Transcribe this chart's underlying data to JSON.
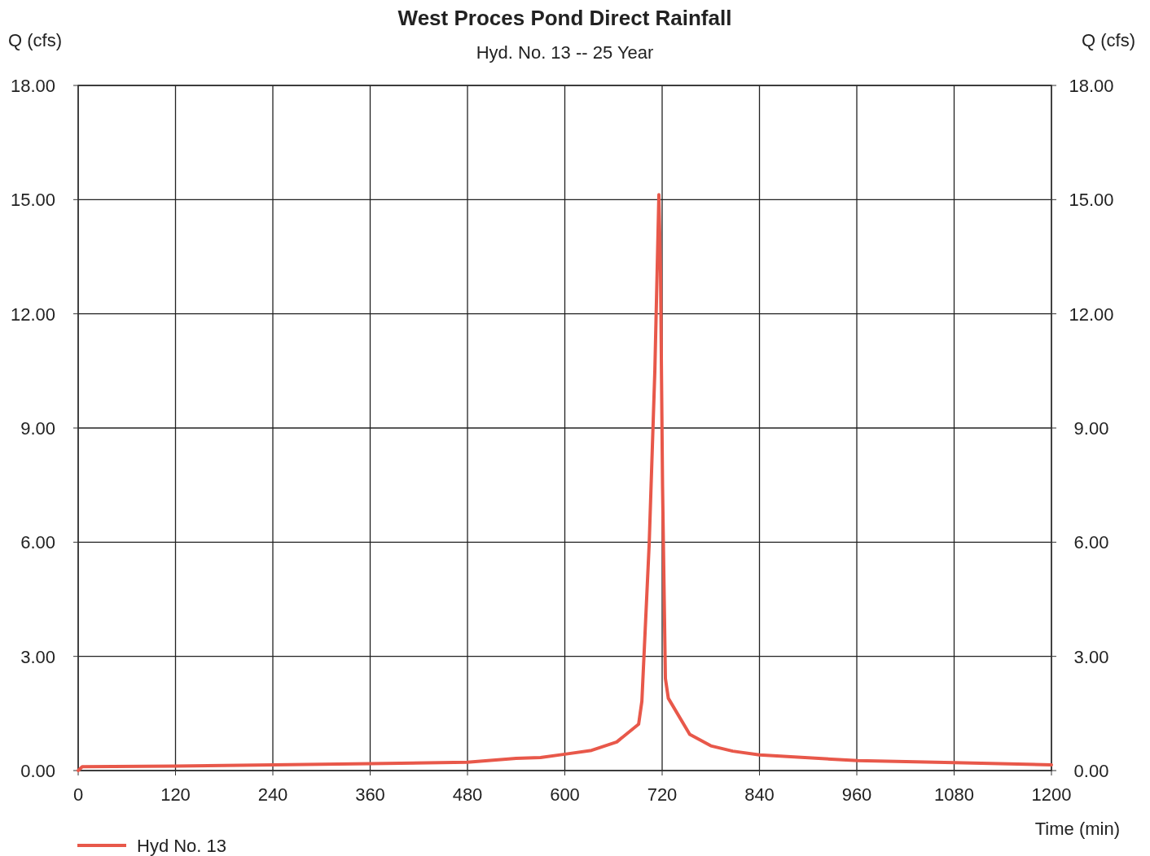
{
  "chart_data": {
    "type": "line",
    "title": "West Proces Pond Direct Rainfall",
    "subtitle": "Hyd. No. 13 -- 25 Year",
    "xlabel": "Time (min)",
    "ylabel": "Q (cfs)",
    "y2label": "Q (cfs)",
    "xlim": [
      0,
      1200
    ],
    "xticks": [
      0,
      120,
      240,
      360,
      480,
      600,
      720,
      840,
      960,
      1080,
      1200
    ],
    "ylim": [
      0,
      18
    ],
    "yticks": [
      {
        "value": 0,
        "label": "0.00"
      },
      {
        "value": 3,
        "label": "3.00"
      },
      {
        "value": 6,
        "label": "6.00"
      },
      {
        "value": 9,
        "label": "9.00"
      },
      {
        "value": 12,
        "label": "12.00"
      },
      {
        "value": 15,
        "label": "15.00"
      },
      {
        "value": 18,
        "label": "18.00"
      }
    ],
    "y2lim": [
      0,
      18
    ],
    "y2ticks": [
      {
        "value": 0,
        "label": "0.00"
      },
      {
        "value": 3,
        "label": "3.00"
      },
      {
        "value": 6,
        "label": "6.00"
      },
      {
        "value": 9,
        "label": "9.00"
      },
      {
        "value": 12,
        "label": "12.00"
      },
      {
        "value": 15,
        "label": "15.00"
      },
      {
        "value": 18,
        "label": "18.00"
      }
    ],
    "grid": true,
    "legend": "bottom left",
    "marker": "none",
    "line_style": "solid",
    "series": [
      {
        "name": "Hyd No. 13",
        "color": "#e8584a",
        "x": [
          0,
          5,
          120,
          240,
          360,
          480,
          540,
          570,
          600,
          633,
          664,
          691,
          695,
          704,
          711,
          716,
          718,
          720.5,
          724,
          727.6,
          754,
          780,
          807,
          840,
          961,
          1080,
          1200
        ],
        "values": [
          0,
          0.1,
          0.12,
          0.15,
          0.18,
          0.22,
          0.32,
          0.34,
          0.43,
          0.53,
          0.75,
          1.22,
          1.82,
          5.94,
          10.5,
          15.13,
          13.1,
          7.46,
          2.42,
          1.9,
          0.95,
          0.65,
          0.51,
          0.41,
          0.26,
          0.21,
          0.15
        ]
      }
    ]
  }
}
